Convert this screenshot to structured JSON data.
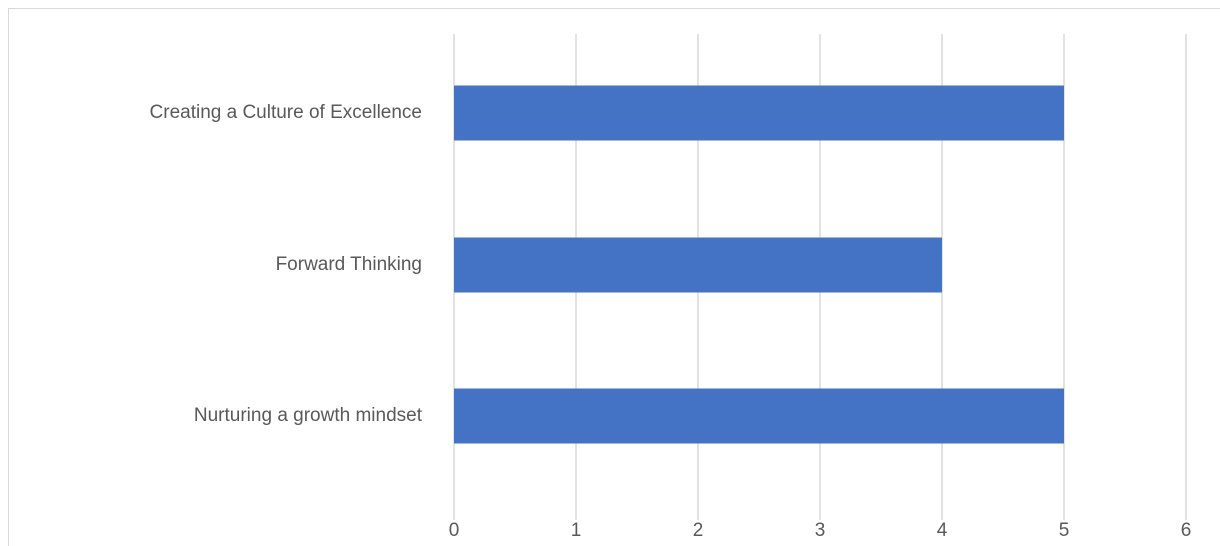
{
  "chart_data": {
    "type": "bar",
    "orientation": "horizontal",
    "categories": [
      "Creating a Culture of Excellence",
      "Forward Thinking",
      "Nurturing a growth mindset"
    ],
    "values": [
      5,
      4,
      5
    ],
    "x_ticks": [
      "0",
      "1",
      "2",
      "3",
      "4",
      "5",
      "6"
    ],
    "xlim": [
      0,
      6
    ],
    "title": "",
    "xlabel": "",
    "ylabel": "",
    "grid": "vertical",
    "legend": "none"
  },
  "colors": {
    "bar": "#4472c4",
    "grid": "#d9d9d9",
    "text": "#595959"
  }
}
